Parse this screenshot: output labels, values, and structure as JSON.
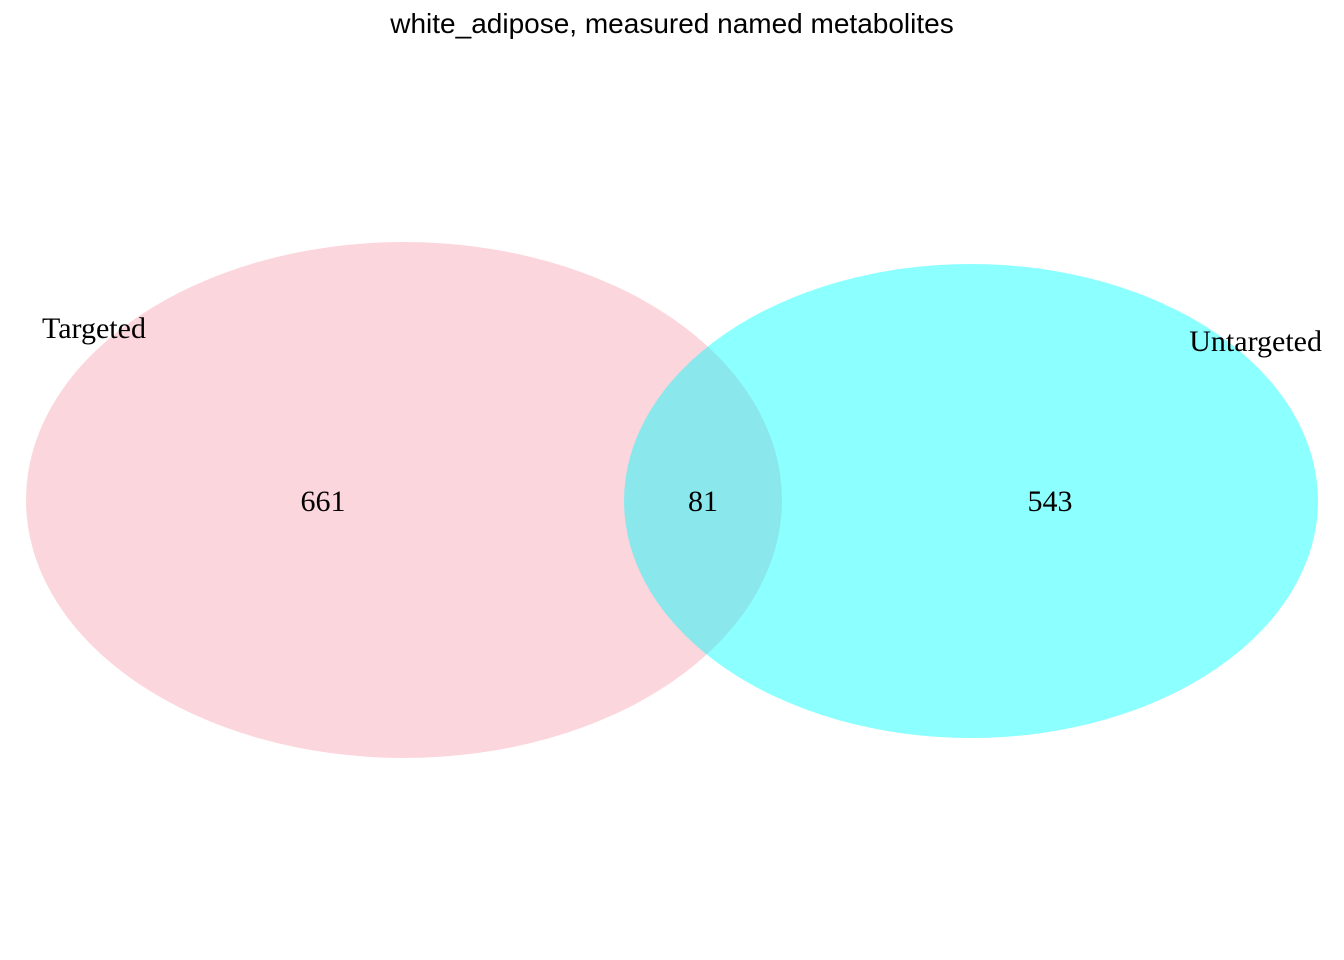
{
  "title": "white_adipose, measured named metabolites",
  "sets": [
    {
      "name": "Targeted",
      "color": "#fbc0cb",
      "opacity": 0.65
    },
    {
      "name": "Untargeted",
      "color": "#00ffff",
      "opacity": 0.45
    }
  ],
  "regions": {
    "only_targeted": "661",
    "intersection": "81",
    "only_untargeted": "543"
  }
}
